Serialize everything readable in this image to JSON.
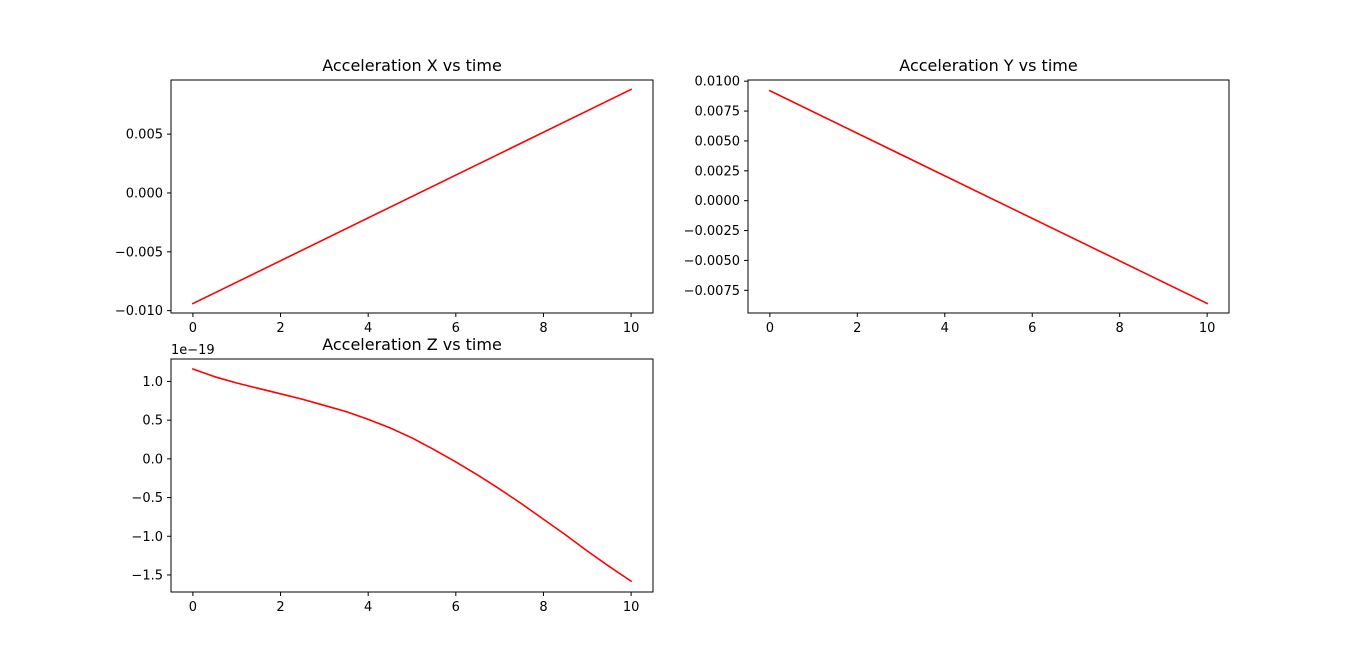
{
  "figure": {
    "background": "#ffffff",
    "line_color": "#ff0000"
  },
  "chart_data": [
    {
      "type": "line",
      "title": "Acceleration X vs time",
      "xlabel": "",
      "ylabel": "",
      "xlim": [
        -0.5,
        10.5
      ],
      "ylim": [
        -0.0102,
        0.0096
      ],
      "x_ticks": [
        0,
        2,
        4,
        6,
        8,
        10
      ],
      "x_tick_labels": [
        "0",
        "2",
        "4",
        "6",
        "8",
        "10"
      ],
      "y_ticks": [
        -0.01,
        -0.005,
        0.0,
        0.005
      ],
      "y_tick_labels": [
        "−0.010",
        "−0.005",
        "0.000",
        "0.005"
      ],
      "offset_text": "",
      "grid": false,
      "legend": "none",
      "series": [
        {
          "color": "#ff0000",
          "x": [
            0,
            10
          ],
          "y": [
            -0.0094,
            0.0088
          ]
        }
      ]
    },
    {
      "type": "line",
      "title": "Acceleration Y vs time",
      "xlabel": "",
      "ylabel": "",
      "xlim": [
        -0.5,
        10.5
      ],
      "ylim": [
        -0.0094,
        0.0101
      ],
      "x_ticks": [
        0,
        2,
        4,
        6,
        8,
        10
      ],
      "x_tick_labels": [
        "0",
        "2",
        "4",
        "6",
        "8",
        "10"
      ],
      "y_ticks": [
        -0.0075,
        -0.005,
        -0.0025,
        0.0,
        0.0025,
        0.005,
        0.0075,
        0.01
      ],
      "y_tick_labels": [
        "−0.0075",
        "−0.0050",
        "−0.0025",
        "0.0000",
        "0.0025",
        "0.0050",
        "0.0075",
        "0.0100"
      ],
      "offset_text": "",
      "grid": false,
      "legend": "none",
      "series": [
        {
          "color": "#ff0000",
          "x": [
            0,
            10
          ],
          "y": [
            0.0092,
            -0.0086
          ]
        }
      ]
    },
    {
      "type": "line",
      "title": "Acceleration Z vs time",
      "xlabel": "",
      "ylabel": "",
      "xlim": [
        -0.5,
        10.5
      ],
      "ylim": [
        -1.72,
        1.29
      ],
      "x_ticks": [
        0,
        2,
        4,
        6,
        8,
        10
      ],
      "x_tick_labels": [
        "0",
        "2",
        "4",
        "6",
        "8",
        "10"
      ],
      "y_ticks": [
        -1.5,
        -1.0,
        -0.5,
        0.0,
        0.5,
        1.0
      ],
      "y_tick_labels": [
        "−1.5",
        "−1.0",
        "−0.5",
        "0.0",
        "0.5",
        "1.0"
      ],
      "offset_text": "1e−19",
      "grid": false,
      "legend": "none",
      "series": [
        {
          "color": "#ff0000",
          "x": [
            0,
            0.5,
            1,
            1.5,
            2,
            2.5,
            3,
            3.5,
            4,
            4.5,
            5,
            5.5,
            6,
            6.5,
            7,
            7.5,
            8,
            8.5,
            9,
            9.5,
            10
          ],
          "y": [
            1.16,
            1.06,
            0.98,
            0.91,
            0.84,
            0.77,
            0.69,
            0.61,
            0.51,
            0.4,
            0.27,
            0.12,
            -0.04,
            -0.21,
            -0.39,
            -0.58,
            -0.78,
            -0.98,
            -1.19,
            -1.39,
            -1.58
          ]
        }
      ]
    }
  ]
}
